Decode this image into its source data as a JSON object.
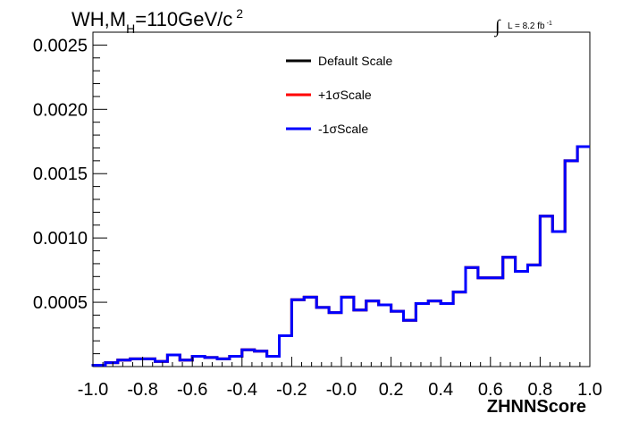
{
  "chart_data": {
    "type": "line",
    "title": {
      "main": "WH,M",
      "sub": "H",
      "after": "=110GeV/c",
      "sup": "2"
    },
    "luminosity": {
      "text": "L = 8.2 fb",
      "sup": "-1"
    },
    "xlabel": "ZHNNScore",
    "ylabel": "",
    "xlim": [
      -1.0,
      1.0
    ],
    "ylim": [
      0.0,
      0.0026
    ],
    "x_tick_labels": [
      "-1.0",
      "-0.8",
      "-0.6",
      "-0.4",
      "-0.2",
      "-0.0",
      "0.2",
      "0.4",
      "0.6",
      "0.8",
      "1.0"
    ],
    "x_tick_values": [
      -1.0,
      -0.8,
      -0.6,
      -0.4,
      -0.2,
      0.0,
      0.2,
      0.4,
      0.6,
      0.8,
      1.0
    ],
    "y_tick_labels": [
      "0.0005",
      "0.0010",
      "0.0015",
      "0.0020",
      "0.0025"
    ],
    "y_tick_values": [
      0.0005,
      0.001,
      0.0015,
      0.002,
      0.0025
    ],
    "grid": false,
    "legend_position": "top-center",
    "bin_edges": [
      -1.0,
      -0.95,
      -0.9,
      -0.85,
      -0.8,
      -0.75,
      -0.7,
      -0.65,
      -0.6,
      -0.55,
      -0.5,
      -0.45,
      -0.4,
      -0.35,
      -0.3,
      -0.25,
      -0.2,
      -0.15,
      -0.1,
      -0.05,
      0.0,
      0.05,
      0.1,
      0.15,
      0.2,
      0.25,
      0.3,
      0.35,
      0.4,
      0.45,
      0.5,
      0.55,
      0.6,
      0.65,
      0.7,
      0.75,
      0.8,
      0.85,
      0.9,
      0.95,
      1.0
    ],
    "series": [
      {
        "name": "Default Scale",
        "color": "#000000",
        "values": [
          1e-05,
          3e-05,
          5e-05,
          6e-05,
          6e-05,
          4e-05,
          9e-05,
          5e-05,
          8e-05,
          7e-05,
          6e-05,
          8e-05,
          0.00013,
          0.00012,
          8e-05,
          0.00024,
          0.00052,
          0.00054,
          0.00046,
          0.00042,
          0.00054,
          0.00044,
          0.00051,
          0.00048,
          0.00043,
          0.00036,
          0.00049,
          0.00051,
          0.00049,
          0.00058,
          0.00077,
          0.00069,
          0.00069,
          0.00085,
          0.00074,
          0.00079,
          0.00117,
          0.00105,
          0.0016,
          0.00171
        ]
      },
      {
        "name": "+1σScale",
        "color": "#ff0000",
        "values": [
          1e-05,
          3e-05,
          5e-05,
          6e-05,
          6e-05,
          4e-05,
          9e-05,
          5e-05,
          8e-05,
          7e-05,
          6e-05,
          8e-05,
          0.00013,
          0.00012,
          8e-05,
          0.00024,
          0.00052,
          0.00054,
          0.00046,
          0.00042,
          0.00054,
          0.00044,
          0.00051,
          0.00048,
          0.00043,
          0.00036,
          0.00049,
          0.00051,
          0.00049,
          0.00058,
          0.00077,
          0.00069,
          0.00069,
          0.00085,
          0.00074,
          0.00079,
          0.00117,
          0.00105,
          0.0016,
          0.00171
        ]
      },
      {
        "name": "-1σScale",
        "color": "#0000ff",
        "values": [
          1e-05,
          3e-05,
          5e-05,
          6e-05,
          6e-05,
          4e-05,
          9e-05,
          5e-05,
          8e-05,
          7e-05,
          6e-05,
          8e-05,
          0.00013,
          0.00012,
          8e-05,
          0.00024,
          0.00052,
          0.00054,
          0.00046,
          0.00042,
          0.00054,
          0.00044,
          0.00051,
          0.00048,
          0.00043,
          0.00036,
          0.00049,
          0.00051,
          0.00049,
          0.00058,
          0.00077,
          0.00069,
          0.00069,
          0.00085,
          0.00074,
          0.00079,
          0.00117,
          0.00105,
          0.0016,
          0.00171
        ]
      }
    ]
  }
}
